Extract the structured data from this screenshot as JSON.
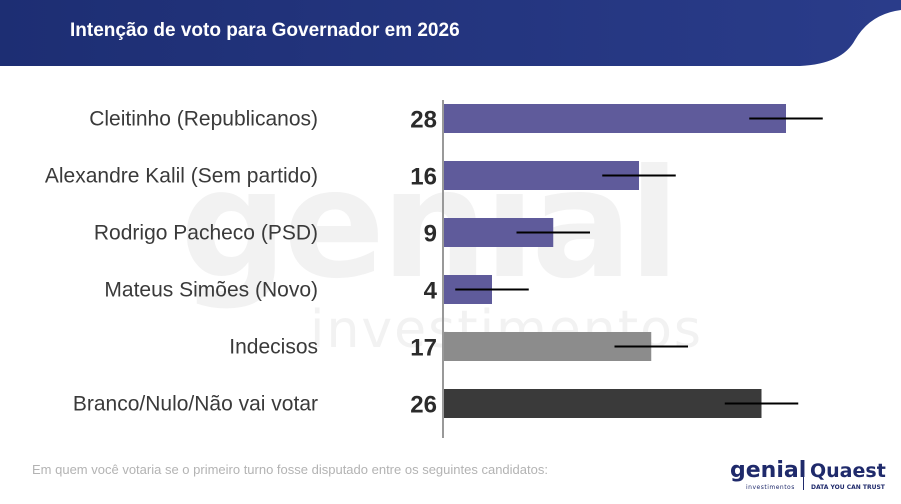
{
  "header": {
    "title": "Intenção de voto para Governador em 2026"
  },
  "watermark": {
    "brand": "genial",
    "sub": "investimentos"
  },
  "chart_data": {
    "type": "bar",
    "orientation": "horizontal",
    "title": "Intenção de voto para Governador em 2026",
    "categories": [
      "Cleitinho (Republicanos)",
      "Alexandre Kalil (Sem partido)",
      "Rodrigo Pacheco (PSD)",
      "Mateus Simões (Novo)",
      "Indecisos",
      "Branco/Nulo/Não vai votar"
    ],
    "values": [
      28,
      16,
      9,
      4,
      17,
      26
    ],
    "error_margin": 3,
    "colors": [
      "#5f5b9b",
      "#5f5b9b",
      "#5f5b9b",
      "#5f5b9b",
      "#8c8c8c",
      "#3a3a3a"
    ],
    "xlim": [
      0,
      35
    ],
    "xlabel": "",
    "ylabel": ""
  },
  "footer": {
    "note": "Em quem você votaria se o primeiro turno fosse disputado entre os seguintes candidatos:",
    "logo_genial": "genial",
    "logo_genial_sub": "investimentos",
    "logo_quaest": "Quaest",
    "logo_quaest_sub": "DATA YOU CAN TRUST"
  }
}
